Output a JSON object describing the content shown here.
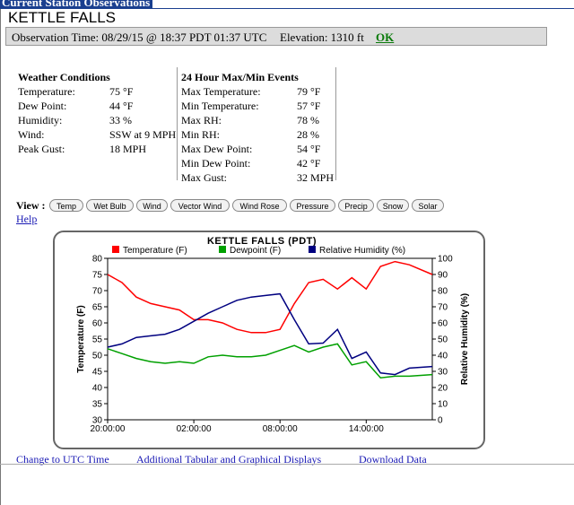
{
  "header": {
    "title": "Current Station Observations"
  },
  "station": {
    "name": "KETTLE FALLS",
    "obs_time": "Observation Time: 08/29/15 @ 18:37 PDT  01:37 UTC",
    "elevation": "Elevation: 1310 ft",
    "ok_label": "OK"
  },
  "conditions": {
    "heading": "Weather Conditions",
    "rows": [
      {
        "label": "Temperature:",
        "value": "75 °F"
      },
      {
        "label": "Dew Point:",
        "value": "44 °F"
      },
      {
        "label": "Humidity:",
        "value": "33 %"
      },
      {
        "label": "Wind:",
        "value": "SSW at 9 MPH"
      },
      {
        "label": "Peak Gust:",
        "value": "18 MPH"
      }
    ]
  },
  "events": {
    "heading": "24 Hour Max/Min Events",
    "rows": [
      {
        "label": "Max Temperature:",
        "value": "79 °F"
      },
      {
        "label": "Min Temperature:",
        "value": "57 °F"
      },
      {
        "label": "Max RH:",
        "value": "78 %"
      },
      {
        "label": "Min RH:",
        "value": "28 %"
      },
      {
        "label": "Max Dew Point:",
        "value": "54 °F"
      },
      {
        "label": "Min Dew Point:",
        "value": "42 °F"
      },
      {
        "label": "Max Gust:",
        "value": "32 MPH"
      }
    ]
  },
  "view": {
    "label": "View :",
    "buttons": [
      "Temp",
      "Wet Bulb",
      "Wind",
      "Vector Wind",
      "Wind Rose",
      "Pressure",
      "Precip",
      "Snow",
      "Solar"
    ],
    "help": "Help"
  },
  "colors": {
    "temperature": "#ff0000",
    "dewpoint": "#00a000",
    "humidity": "#000080",
    "header_bg": "#1a3f8f",
    "link": "#1a1ab4",
    "ok": "#0a7a0a"
  },
  "chart_data": {
    "type": "line",
    "title": "KETTLE FALLS (PDT)",
    "xlabel": "",
    "ylabel": "Temperature (F)",
    "ylabel_right": "Relative Humidity (%)",
    "ylim": [
      30,
      80
    ],
    "ylim_right": [
      0,
      100
    ],
    "y_ticks": [
      30,
      35,
      40,
      45,
      50,
      55,
      60,
      65,
      70,
      75,
      80
    ],
    "y_ticks_right": [
      0,
      10,
      20,
      30,
      40,
      50,
      60,
      70,
      80,
      90,
      100
    ],
    "x_ticks": [
      "20:00:00",
      "02:00:00",
      "08:00:00",
      "14:00:00"
    ],
    "x_tick_hours": [
      0,
      6,
      12,
      18
    ],
    "xlim_hours": [
      0,
      22.6
    ],
    "legend": [
      "Temperature (F)",
      "Dewpoint (F)",
      "Relative Humidity (%)"
    ],
    "legend_position": "top",
    "series": [
      {
        "name": "Temperature (F)",
        "axis": "left",
        "color": "#ff0000",
        "x": [
          0,
          1,
          2,
          3,
          4,
          5,
          6,
          7,
          8,
          9,
          10,
          11,
          12,
          13,
          14,
          15,
          16,
          17,
          18,
          19,
          20,
          21,
          22.6
        ],
        "y": [
          75,
          72.5,
          68,
          66,
          65,
          64,
          61,
          61,
          60,
          58,
          57,
          57,
          58,
          66,
          72.5,
          73.5,
          70.5,
          74,
          70.5,
          77.5,
          79,
          78,
          75
        ]
      },
      {
        "name": "Dewpoint (F)",
        "axis": "left",
        "color": "#00a000",
        "x": [
          0,
          1,
          2,
          3,
          4,
          5,
          6,
          7,
          8,
          9,
          10,
          11,
          12,
          13,
          14,
          15,
          16,
          17,
          18,
          19,
          20,
          21,
          22.6
        ],
        "y": [
          52,
          50.5,
          49,
          48,
          47.5,
          48,
          47.5,
          49.5,
          50,
          49.5,
          49.5,
          50,
          51.5,
          53,
          51,
          52.5,
          53.5,
          47,
          48,
          43,
          43.5,
          43.5,
          44
        ]
      },
      {
        "name": "Relative Humidity (%)",
        "axis": "right",
        "color": "#000080",
        "x": [
          0,
          1,
          2,
          3,
          4,
          5,
          6,
          7,
          8,
          9,
          10,
          11,
          12,
          13,
          14,
          15,
          16,
          17,
          18,
          19,
          20,
          21,
          22.6
        ],
        "y": [
          45,
          47,
          51,
          52,
          53,
          56,
          61,
          66,
          70,
          74,
          76,
          77,
          78,
          62,
          47,
          47.5,
          56,
          38,
          42,
          29,
          28,
          32,
          33
        ]
      }
    ]
  },
  "links": {
    "utc": "Change to UTC Time",
    "additional": "Additional Tabular and Graphical Displays",
    "download": "Download Data"
  }
}
